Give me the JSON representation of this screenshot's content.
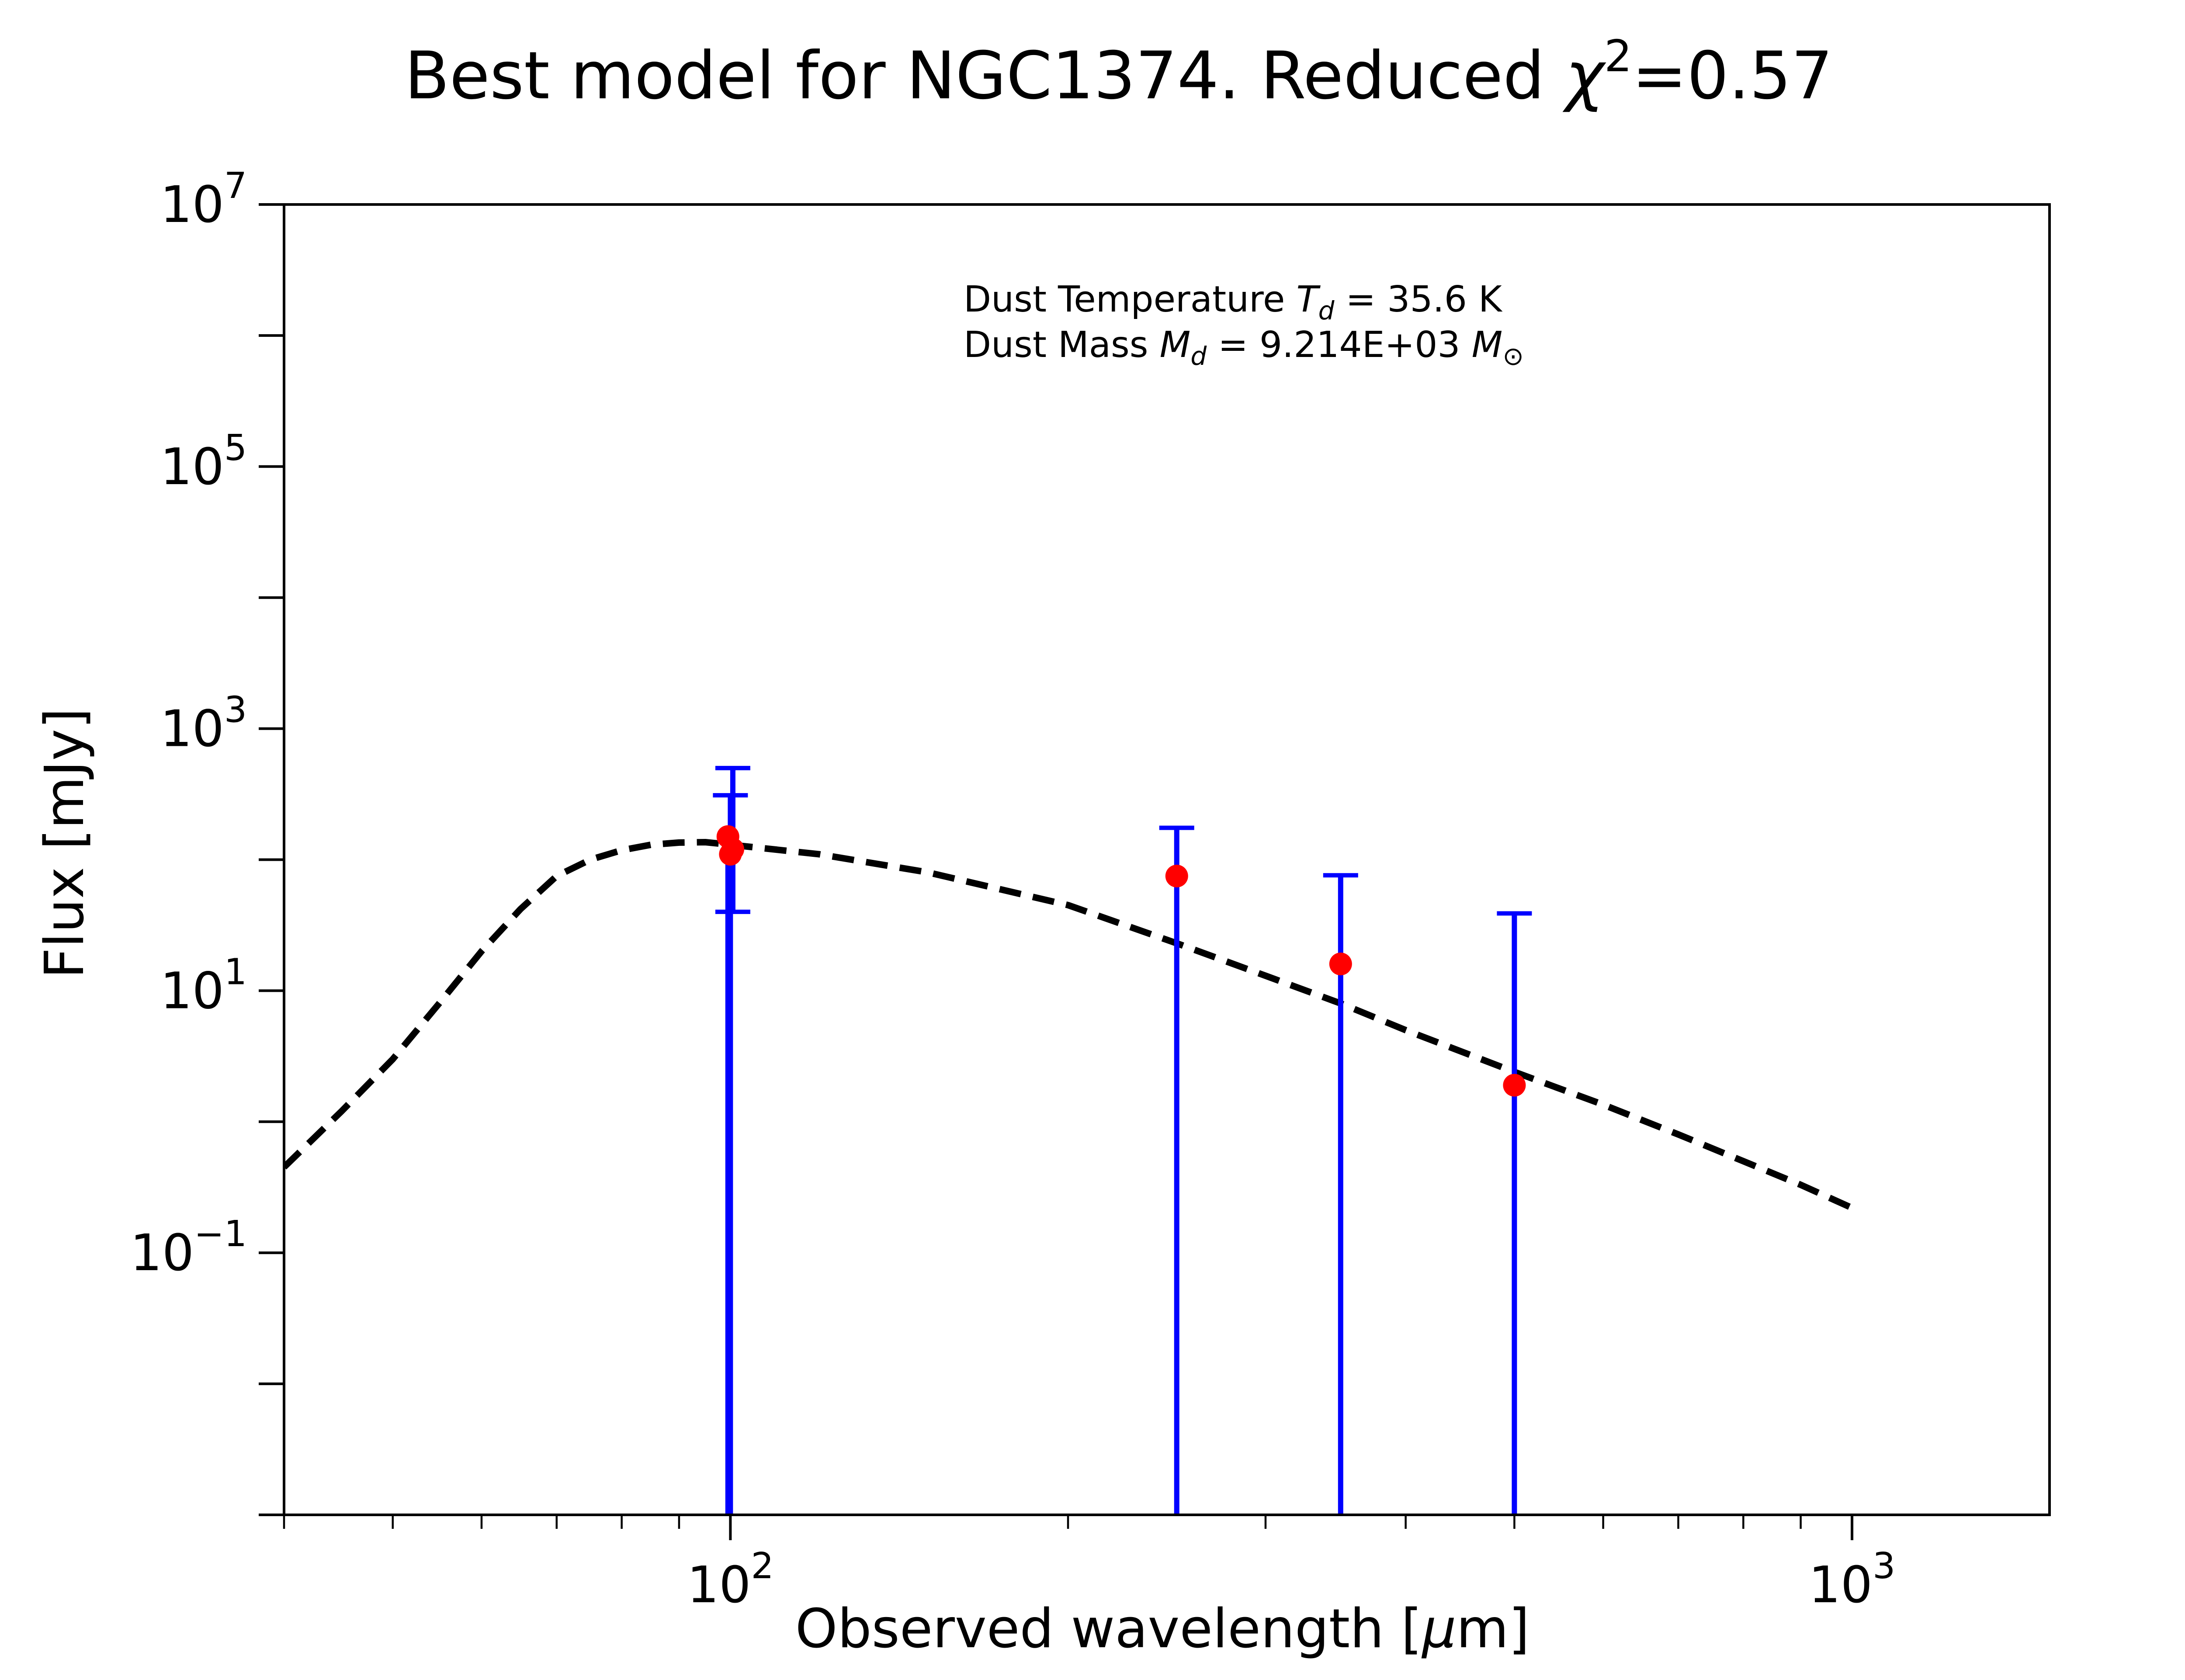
{
  "chart_data": {
    "type": "scatter",
    "title": {
      "prefix": "Best model for NGC1374. Reduced ",
      "symbol": "χ",
      "exponent": "2",
      "suffix": "=0.57"
    },
    "xlabel": {
      "prefix": "Observed wavelength [",
      "symbol": "μ",
      "suffix": "m]"
    },
    "ylabel": "Flux [mJy]",
    "x_scale": "log",
    "y_scale": "log",
    "xlim": [
      40,
      1500
    ],
    "ylim": [
      0.001,
      10000000
    ],
    "grid": false,
    "x_major_ticks": [
      {
        "value": 100,
        "base": "10",
        "exponent": "2"
      },
      {
        "value": 1000,
        "base": "10",
        "exponent": "3"
      }
    ],
    "y_major_ticks": [
      {
        "value": 0.1,
        "base": "10",
        "exponent": "−1"
      },
      {
        "value": 10,
        "base": "10",
        "exponent": "1"
      },
      {
        "value": 1000,
        "base": "10",
        "exponent": "3"
      },
      {
        "value": 100000,
        "base": "10",
        "exponent": "5"
      },
      {
        "value": 10000000,
        "base": "10",
        "exponent": "7"
      }
    ],
    "points": [
      {
        "x": 99.5,
        "y": 150,
        "yerr_low": 150,
        "yerr_high": 0,
        "capped_high": false
      },
      {
        "x": 100,
        "y": 110,
        "yerr_low": 110,
        "yerr_high": 200,
        "capped_high": true
      },
      {
        "x": 100.5,
        "y": 120,
        "yerr_low": 80,
        "yerr_high": 380,
        "capped_high": true
      },
      {
        "x": 250,
        "y": 75,
        "yerr_low": 75,
        "yerr_high": 100,
        "capped_high": true
      },
      {
        "x": 350,
        "y": 16,
        "yerr_low": 16,
        "yerr_high": 60,
        "capped_high": true
      },
      {
        "x": 500,
        "y": 1.9,
        "yerr_low": 1.9,
        "yerr_high": 37,
        "capped_high": true
      }
    ],
    "model_curve": [
      {
        "x": 40,
        "y": 0.45
      },
      {
        "x": 45,
        "y": 1.2
      },
      {
        "x": 50,
        "y": 3.0
      },
      {
        "x": 55,
        "y": 8.0
      },
      {
        "x": 60,
        "y": 20
      },
      {
        "x": 65,
        "y": 42
      },
      {
        "x": 70,
        "y": 75
      },
      {
        "x": 75,
        "y": 100
      },
      {
        "x": 80,
        "y": 118
      },
      {
        "x": 85,
        "y": 130
      },
      {
        "x": 90,
        "y": 135
      },
      {
        "x": 95,
        "y": 136
      },
      {
        "x": 100,
        "y": 130
      },
      {
        "x": 120,
        "y": 110
      },
      {
        "x": 150,
        "y": 80
      },
      {
        "x": 200,
        "y": 45
      },
      {
        "x": 250,
        "y": 23
      },
      {
        "x": 300,
        "y": 13
      },
      {
        "x": 350,
        "y": 8
      },
      {
        "x": 400,
        "y": 5
      },
      {
        "x": 500,
        "y": 2.4
      },
      {
        "x": 600,
        "y": 1.35
      },
      {
        "x": 700,
        "y": 0.8
      },
      {
        "x": 800,
        "y": 0.5
      },
      {
        "x": 900,
        "y": 0.33
      },
      {
        "x": 1000,
        "y": 0.22
      }
    ],
    "annotations": [
      {
        "prefix": "Dust Temperature ",
        "symbol": "T",
        "subscript": "d",
        "suffix": " = 35.6 K",
        "unit_symbol": ""
      },
      {
        "prefix": "Dust Mass ",
        "symbol": "M",
        "subscript": "d",
        "suffix": " = 9.214E+03 ",
        "unit_symbol": "M",
        "unit_subscript": "⊙"
      }
    ],
    "colors": {
      "points": "#ff0000",
      "error_bars": "#0000ff",
      "model_curve": "#000000",
      "axes": "#000000"
    }
  }
}
